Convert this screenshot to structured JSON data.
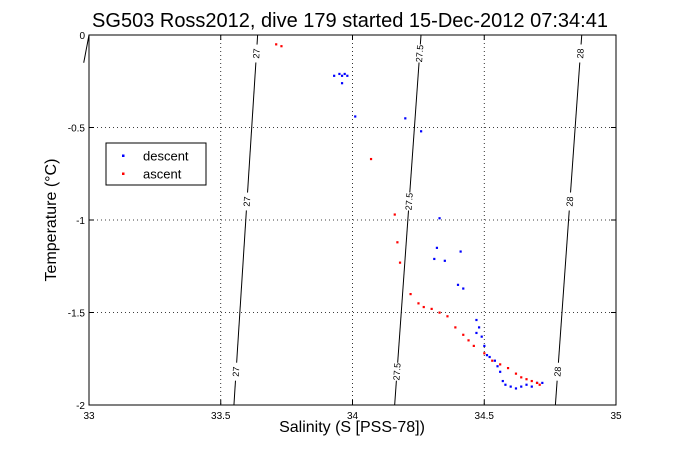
{
  "chart_data": {
    "type": "scatter",
    "title": "SG503 Ross2012, dive 179 started 15-Dec-2012 07:34:41",
    "xlabel": "Salinity (S [PSS-78])",
    "ylabel": "Temperature (°C)",
    "xlim": [
      33,
      35
    ],
    "ylim": [
      -2,
      0
    ],
    "xticks": [
      33,
      33.5,
      34,
      34.5,
      35
    ],
    "xtick_labels": [
      "33",
      "33.5",
      "34",
      "34.5",
      "35"
    ],
    "yticks": [
      0,
      -0.5,
      -1,
      -1.5,
      -2
    ],
    "ytick_labels": [
      "0",
      "-0.5",
      "-1",
      "-1.5",
      "-2"
    ],
    "grid": true,
    "legend_position": "upper-left",
    "series": [
      {
        "name": "descent",
        "color": "#0000ff",
        "points": [
          [
            33.93,
            -0.22
          ],
          [
            33.95,
            -0.21
          ],
          [
            33.96,
            -0.22
          ],
          [
            33.97,
            -0.21
          ],
          [
            33.98,
            -0.22
          ],
          [
            33.96,
            -0.26
          ],
          [
            34.01,
            -0.44
          ],
          [
            34.2,
            -0.45
          ],
          [
            34.26,
            -0.52
          ],
          [
            34.33,
            -0.99
          ],
          [
            34.32,
            -1.15
          ],
          [
            34.31,
            -1.21
          ],
          [
            34.35,
            -1.22
          ],
          [
            34.41,
            -1.17
          ],
          [
            34.4,
            -1.35
          ],
          [
            34.42,
            -1.37
          ],
          [
            34.47,
            -1.54
          ],
          [
            34.48,
            -1.58
          ],
          [
            34.47,
            -1.61
          ],
          [
            34.49,
            -1.63
          ],
          [
            34.5,
            -1.68
          ],
          [
            34.51,
            -1.73
          ],
          [
            34.52,
            -1.74
          ],
          [
            34.54,
            -1.76
          ],
          [
            34.55,
            -1.79
          ],
          [
            34.56,
            -1.82
          ],
          [
            34.57,
            -1.87
          ],
          [
            34.58,
            -1.89
          ],
          [
            34.6,
            -1.9
          ],
          [
            34.62,
            -1.91
          ],
          [
            34.64,
            -1.9
          ],
          [
            34.66,
            -1.89
          ],
          [
            34.68,
            -1.9
          ],
          [
            34.7,
            -1.88
          ],
          [
            34.72,
            -1.88
          ]
        ]
      },
      {
        "name": "ascent",
        "color": "#ff0000",
        "points": [
          [
            33.71,
            -0.05
          ],
          [
            33.73,
            -0.06
          ],
          [
            34.07,
            -0.67
          ],
          [
            34.16,
            -0.97
          ],
          [
            34.17,
            -1.12
          ],
          [
            34.18,
            -1.23
          ],
          [
            34.22,
            -1.4
          ],
          [
            34.25,
            -1.45
          ],
          [
            34.27,
            -1.47
          ],
          [
            34.3,
            -1.48
          ],
          [
            34.33,
            -1.5
          ],
          [
            34.36,
            -1.52
          ],
          [
            34.39,
            -1.58
          ],
          [
            34.42,
            -1.62
          ],
          [
            34.44,
            -1.65
          ],
          [
            34.46,
            -1.68
          ],
          [
            34.5,
            -1.72
          ],
          [
            34.53,
            -1.76
          ],
          [
            34.56,
            -1.78
          ],
          [
            34.59,
            -1.8
          ],
          [
            34.62,
            -1.83
          ],
          [
            34.64,
            -1.85
          ],
          [
            34.66,
            -1.86
          ],
          [
            34.68,
            -1.87
          ],
          [
            34.7,
            -1.88
          ],
          [
            34.71,
            -1.89
          ]
        ]
      }
    ],
    "isopycnals": [
      {
        "label": "27",
        "points": [
          [
            33.55,
            -2
          ],
          [
            33.64,
            0
          ]
        ]
      },
      {
        "label": "27.5",
        "points": [
          [
            34.16,
            -2
          ],
          [
            34.26,
            0
          ]
        ]
      },
      {
        "label": "28",
        "points": [
          [
            34.77,
            -2
          ],
          [
            34.87,
            0
          ]
        ]
      },
      {
        "label": "",
        "points": [
          [
            32.98,
            -0.15
          ],
          [
            33.0,
            0
          ]
        ]
      }
    ]
  }
}
